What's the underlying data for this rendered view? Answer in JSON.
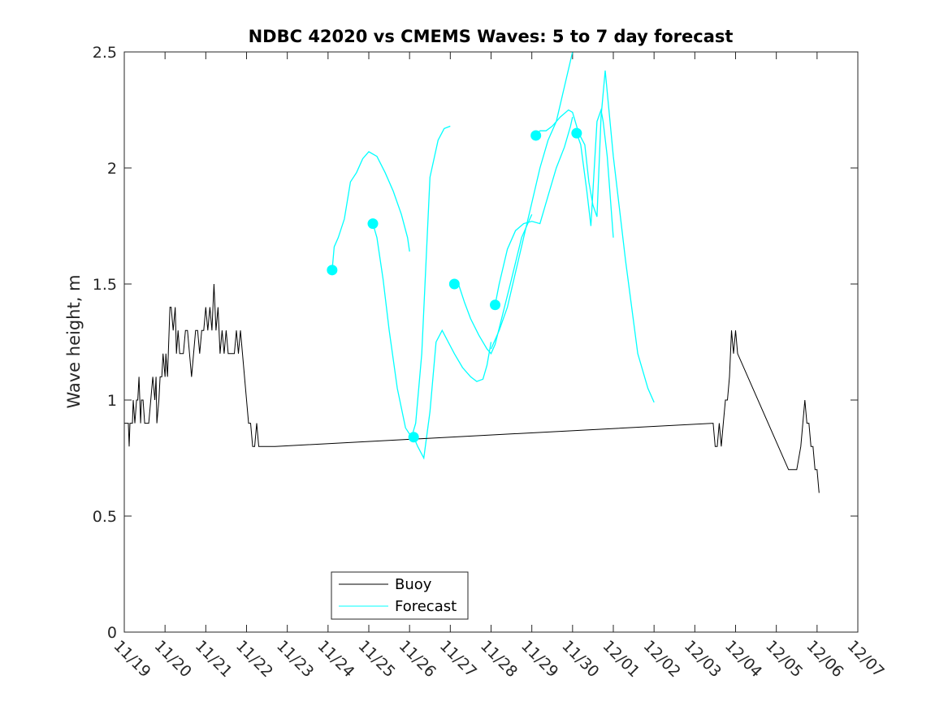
{
  "chart_data": {
    "type": "line",
    "title": "NDBC 42020 vs CMEMS Waves: 5 to 7 day forecast",
    "xlabel": "",
    "ylabel": "Wave height, m",
    "xlim": [
      0,
      18
    ],
    "ylim": [
      0,
      2.5
    ],
    "x_ticks": [
      0,
      1,
      2,
      3,
      4,
      5,
      6,
      7,
      8,
      9,
      10,
      11,
      12,
      13,
      14,
      15,
      16,
      17,
      18
    ],
    "x_tick_labels": [
      "11/19",
      "11/20",
      "11/21",
      "11/22",
      "11/23",
      "11/24",
      "11/25",
      "11/26",
      "11/27",
      "11/28",
      "11/29",
      "11/30",
      "12/01",
      "12/02",
      "12/03",
      "12/04",
      "12/05",
      "12/06",
      "12/07"
    ],
    "y_ticks": [
      0,
      0.5,
      1,
      1.5,
      2,
      2.5
    ],
    "y_tick_labels": [
      "0",
      "0.5",
      "1",
      "1.5",
      "2",
      "2.5"
    ],
    "legend": {
      "position": "bottom-left",
      "entries": [
        {
          "label": "Buoy",
          "color": "#000000"
        },
        {
          "label": "Forecast",
          "color": "#00ffff"
        }
      ]
    },
    "buoy": {
      "name": "Buoy",
      "color": "#000000",
      "x": [
        0,
        0.1,
        0.12,
        0.14,
        0.2,
        0.22,
        0.26,
        0.3,
        0.33,
        0.36,
        0.4,
        0.42,
        0.46,
        0.5,
        0.55,
        0.6,
        0.7,
        0.75,
        0.78,
        0.8,
        0.85,
        0.88,
        0.92,
        0.95,
        1.0,
        1.02,
        1.06,
        1.08,
        1.12,
        1.15,
        1.2,
        1.25,
        1.28,
        1.32,
        1.36,
        1.4,
        1.45,
        1.5,
        1.55,
        1.6,
        1.65,
        1.7,
        1.75,
        1.8,
        1.85,
        1.9,
        1.95,
        2.0,
        2.05,
        2.1,
        2.15,
        2.2,
        2.25,
        2.3,
        2.35,
        2.4,
        2.45,
        2.5,
        2.55,
        2.6,
        2.65,
        2.7,
        2.75,
        2.8,
        2.85,
        2.9,
        2.95,
        3.0,
        3.05,
        3.1,
        3.15,
        3.2,
        3.25,
        3.3,
        3.35,
        3.4,
        3.45,
        3.5,
        3.55,
        3.6,
        3.65,
        3.7,
        14.45,
        14.5,
        14.55,
        14.6,
        14.65,
        14.7,
        14.75,
        14.8,
        14.85,
        14.9,
        14.95,
        15.0,
        15.05,
        16.3,
        16.5,
        16.6,
        16.65,
        16.7,
        16.75,
        16.8,
        16.85,
        16.9,
        16.95,
        17.0,
        17.05
      ],
      "y": [
        0.9,
        0.9,
        0.8,
        0.9,
        0.9,
        1.0,
        0.9,
        1.0,
        1.0,
        1.1,
        0.9,
        1.0,
        1.0,
        0.9,
        0.9,
        0.9,
        1.1,
        1.0,
        1.1,
        0.9,
        1.0,
        1.1,
        1.1,
        1.2,
        1.1,
        1.2,
        1.1,
        1.2,
        1.4,
        1.4,
        1.3,
        1.4,
        1.2,
        1.3,
        1.2,
        1.2,
        1.2,
        1.3,
        1.3,
        1.2,
        1.1,
        1.2,
        1.3,
        1.3,
        1.2,
        1.3,
        1.3,
        1.4,
        1.3,
        1.4,
        1.3,
        1.5,
        1.3,
        1.4,
        1.2,
        1.3,
        1.2,
        1.3,
        1.2,
        1.2,
        1.2,
        1.2,
        1.3,
        1.2,
        1.3,
        1.2,
        1.1,
        1.0,
        0.9,
        0.9,
        0.8,
        0.8,
        0.9,
        0.8,
        0.8,
        0.8,
        0.8,
        0.8,
        0.8,
        0.8,
        0.8,
        0.8,
        0.9,
        0.8,
        0.8,
        0.9,
        0.8,
        0.9,
        1.0,
        1.0,
        1.1,
        1.3,
        1.2,
        1.3,
        1.2,
        0.7,
        0.7,
        0.8,
        0.9,
        1.0,
        0.9,
        0.9,
        0.8,
        0.8,
        0.7,
        0.7,
        0.6
      ]
    },
    "forecast_series": [
      {
        "x": [
          5.1,
          5.15,
          5.25,
          5.4,
          5.55,
          5.7,
          5.85,
          6.0,
          6.2,
          6.4,
          6.6,
          6.8,
          6.95,
          7.0
        ],
        "y": [
          1.56,
          1.66,
          1.7,
          1.78,
          1.94,
          1.98,
          2.04,
          2.07,
          2.05,
          1.98,
          1.9,
          1.8,
          1.7,
          1.64
        ]
      },
      {
        "x": [
          6.1,
          6.2,
          6.35,
          6.5,
          6.7,
          6.9,
          7.05,
          7.15,
          7.3,
          7.5,
          7.7,
          7.85,
          8.0
        ],
        "y": [
          1.76,
          1.7,
          1.52,
          1.3,
          1.05,
          0.88,
          0.84,
          0.9,
          1.2,
          1.96,
          2.12,
          2.17,
          2.18
        ]
      },
      {
        "x": [
          7.1,
          7.2,
          7.35,
          7.5,
          7.65,
          7.8,
          7.95,
          8.1,
          8.3,
          8.5,
          8.65,
          8.8,
          8.9,
          9.0
        ],
        "y": [
          0.84,
          0.8,
          0.75,
          0.95,
          1.25,
          1.3,
          1.25,
          1.2,
          1.14,
          1.1,
          1.08,
          1.09,
          1.15,
          1.25
        ]
      },
      {
        "x": [
          8.1,
          8.2,
          8.35,
          8.5,
          8.7,
          8.9,
          9.0,
          9.1,
          9.3,
          9.5,
          9.75,
          10.0
        ],
        "y": [
          1.5,
          1.5,
          1.42,
          1.35,
          1.28,
          1.22,
          1.2,
          1.24,
          1.38,
          1.52,
          1.7,
          1.8
        ]
      },
      {
        "x": [
          9.1,
          9.2,
          9.4,
          9.6,
          9.8,
          10.0,
          10.2,
          10.4,
          10.6,
          10.8,
          10.95,
          11.0
        ],
        "y": [
          1.41,
          1.5,
          1.65,
          1.73,
          1.76,
          1.77,
          1.76,
          1.88,
          2.0,
          2.09,
          2.18,
          2.22
        ]
      },
      {
        "x": [
          10.1,
          10.2,
          10.35,
          10.5,
          10.7,
          10.9,
          11.0,
          11.15,
          11.3,
          11.4,
          11.5,
          11.6,
          11.7,
          11.8,
          12.0,
          12.3,
          12.6,
          12.85,
          13.0
        ],
        "y": [
          2.14,
          2.16,
          2.16,
          2.18,
          2.22,
          2.25,
          2.24,
          2.15,
          2.1,
          1.94,
          1.84,
          1.79,
          2.22,
          2.42,
          2.05,
          1.6,
          1.2,
          1.05,
          0.99
        ]
      },
      {
        "x": [
          11.1,
          11.2,
          11.35,
          11.45,
          11.6,
          11.7,
          11.75,
          11.85,
          12.0
        ],
        "y": [
          2.15,
          2.1,
          1.9,
          1.75,
          2.2,
          2.25,
          2.2,
          2.05,
          1.7
        ]
      },
      {
        "x": [
          9.0,
          9.2,
          9.4,
          9.6,
          9.8,
          10.0,
          10.2,
          10.4,
          10.6,
          10.8,
          11.0
        ],
        "y": [
          1.22,
          1.3,
          1.4,
          1.55,
          1.7,
          1.85,
          2.0,
          2.12,
          2.2,
          2.35,
          2.5
        ]
      }
    ],
    "forecast_markers": {
      "color": "#00ffff",
      "x": [
        5.1,
        6.1,
        7.1,
        8.1,
        9.1,
        10.1,
        11.1
      ],
      "y": [
        1.56,
        1.76,
        0.84,
        1.5,
        1.41,
        2.14,
        2.15
      ]
    }
  }
}
